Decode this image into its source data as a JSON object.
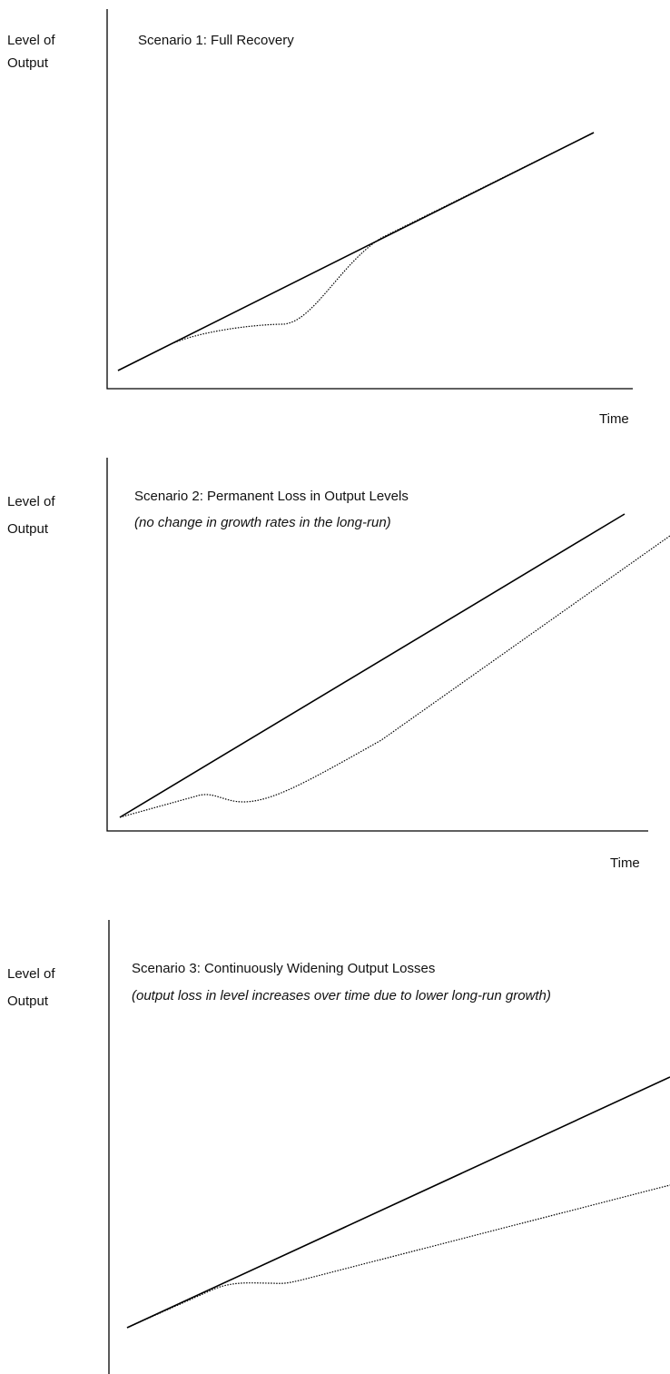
{
  "panels": [
    {
      "y_label": [
        "Level of",
        "Output"
      ],
      "title": "Scenario 1: Full Recovery",
      "x_label": "Time"
    },
    {
      "y_label": [
        "Level of",
        "Output"
      ],
      "title": "Scenario 2: Permanent Loss in Output Levels",
      "subtitle": "(no change in growth rates in the long-run)",
      "x_label": "Time"
    },
    {
      "y_label": [
        "Level of",
        "Output"
      ],
      "title": "Scenario 3: Continuously Widening Output Losses",
      "subtitle": "(output loss in level increases over time due to lower long-run growth)"
    }
  ]
}
